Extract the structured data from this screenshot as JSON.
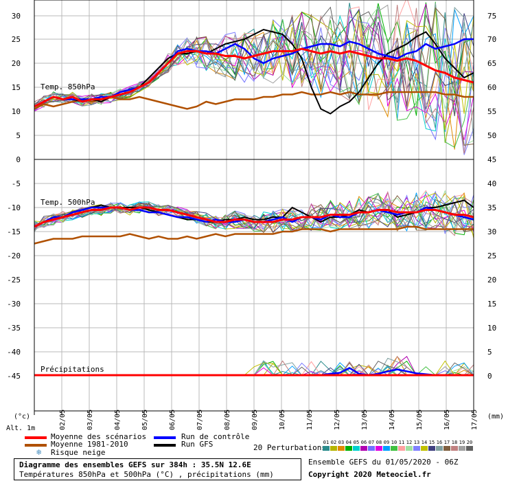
{
  "chart_data": {
    "type": "line",
    "x_dates": [
      "02/05",
      "03/05",
      "04/05",
      "05/05",
      "06/05",
      "07/05",
      "08/05",
      "09/05",
      "10/05",
      "11/05",
      "12/05",
      "13/05",
      "14/05",
      "15/05",
      "16/05",
      "17/05"
    ],
    "units_left": "(°c)",
    "units_right": "(mm)",
    "alt_label": "Alt. 1m",
    "left_ticks": [
      30,
      25,
      20,
      15,
      10,
      5,
      0,
      -5,
      -10,
      -15,
      -20,
      -25,
      -30,
      -35,
      -40,
      -45
    ],
    "right_ticks": [
      75,
      70,
      65,
      60,
      55,
      50,
      45,
      40,
      35,
      30,
      25,
      20,
      15,
      10,
      5,
      0
    ],
    "panels": [
      {
        "label": "Temp. 850hPa",
        "yrange_c": [
          0,
          30
        ],
        "mean_scenarios": [
          11,
          12,
          13,
          12.5,
          13,
          12,
          12.5,
          12.5,
          13,
          13.5,
          14,
          15,
          16,
          18,
          20,
          22,
          22.5,
          22.5,
          22,
          22,
          21.5,
          21.5,
          21,
          21.5,
          22,
          22.5,
          22.5,
          22.5,
          23,
          22.5,
          22,
          22.5,
          22,
          22.5,
          22,
          21.5,
          21,
          21,
          20.5,
          21,
          20.5,
          19.5,
          18.5,
          18,
          17,
          16.5,
          16
        ],
        "mean_1981_2010": [
          10.5,
          11.5,
          11,
          11.5,
          12,
          12.5,
          12,
          12.5,
          13,
          12.5,
          12.5,
          13,
          12.5,
          12,
          11.5,
          11,
          10.5,
          11,
          12,
          11.5,
          12,
          12.5,
          12.5,
          12.5,
          13,
          13,
          13.5,
          13.5,
          14,
          13.5,
          13.5,
          14,
          13.5,
          14,
          13.5,
          13.5,
          13.5,
          14,
          14,
          14,
          14,
          14,
          14,
          13.5,
          13.5,
          13,
          13
        ],
        "control_run": [
          11,
          12,
          13,
          12.5,
          12.5,
          12.5,
          12.5,
          13,
          13,
          14,
          14.5,
          15,
          16,
          18,
          20,
          22.5,
          23,
          22.5,
          22.5,
          22,
          23,
          24,
          23,
          21,
          20,
          21,
          21.5,
          22,
          23,
          23.5,
          24,
          24,
          23.5,
          24.5,
          24,
          23,
          22,
          21.5,
          21,
          22,
          22.5,
          24,
          23,
          23.5,
          24,
          25,
          25
        ],
        "gfs_run": [
          11,
          12,
          13,
          12.5,
          12.5,
          12,
          12.5,
          12,
          13,
          14,
          14.5,
          15,
          17,
          19,
          21,
          22,
          22,
          22.5,
          22,
          23,
          24,
          24.5,
          25,
          26,
          27,
          26.5,
          26,
          24,
          21,
          15,
          10.5,
          9.5,
          11,
          12,
          14,
          17,
          20,
          22,
          23,
          24,
          25.5,
          26.5,
          24,
          21,
          19,
          17,
          18
        ]
      },
      {
        "label": "Temp. 500hPa",
        "yrange_c": [
          -45,
          0
        ],
        "mean_scenarios": [
          -14,
          -13,
          -12.5,
          -12,
          -11.5,
          -11,
          -10.5,
          -10.5,
          -10,
          -10,
          -10.5,
          -10,
          -10,
          -10.5,
          -10.5,
          -11,
          -11.5,
          -12,
          -12.5,
          -13,
          -13,
          -12.5,
          -12.5,
          -13,
          -13,
          -13,
          -12.5,
          -12.5,
          -12,
          -12,
          -12,
          -11.5,
          -11.5,
          -11.5,
          -11,
          -11,
          -10.5,
          -10.5,
          -11,
          -11,
          -11,
          -10.5,
          -10.5,
          -11,
          -11.5,
          -11.5,
          -12
        ],
        "mean_1981_2010": [
          -17.5,
          -17,
          -16.5,
          -16.5,
          -16.5,
          -16,
          -16,
          -16,
          -16,
          -16,
          -15.5,
          -16,
          -16.5,
          -16,
          -16.5,
          -16.5,
          -16,
          -16.5,
          -16,
          -15.5,
          -16,
          -15.5,
          -15.5,
          -15.5,
          -15.5,
          -15.5,
          -15,
          -15,
          -14.5,
          -14.5,
          -14.5,
          -15,
          -14.5,
          -14.5,
          -14.5,
          -14.5,
          -14.5,
          -14.5,
          -14.5,
          -14,
          -14,
          -14.5,
          -14.5,
          -14.5,
          -14.5,
          -14.5,
          -14.5
        ],
        "control_run": [
          -14,
          -13,
          -12,
          -12,
          -11,
          -10.5,
          -10,
          -10,
          -10,
          -10,
          -10.5,
          -10.5,
          -11,
          -11,
          -11.5,
          -12,
          -12,
          -12.5,
          -13,
          -12.5,
          -13,
          -13,
          -12.5,
          -13,
          -13,
          -12.5,
          -12,
          -13,
          -12,
          -12,
          -12.5,
          -11.5,
          -12,
          -12,
          -11,
          -11,
          -10.5,
          -11,
          -11.5,
          -11,
          -11,
          -10,
          -10.5,
          -11,
          -11.5,
          -12,
          -12.5
        ],
        "gfs_run": [
          -14,
          -13,
          -12,
          -12,
          -11,
          -10.5,
          -10,
          -9.5,
          -10,
          -10,
          -10,
          -10,
          -10.5,
          -11,
          -11.5,
          -12,
          -12.5,
          -12.5,
          -13,
          -13,
          -12.5,
          -12.5,
          -12,
          -12.5,
          -12.5,
          -12,
          -12,
          -10,
          -11,
          -12,
          -13,
          -12,
          -12,
          -11.5,
          -10.5,
          -11,
          -10.5,
          -10.5,
          -12,
          -11.5,
          -11,
          -10,
          -10,
          -9.5,
          -9,
          -8.5,
          -10
        ]
      },
      {
        "label": "Précipitations",
        "yrange_mm": [
          0,
          45
        ],
        "mean_scenarios": [
          0,
          0,
          0,
          0,
          0,
          0,
          0,
          0,
          0,
          0,
          0,
          0,
          0,
          0,
          0,
          0,
          0,
          0,
          0,
          0,
          0,
          0,
          0,
          0,
          0,
          0,
          0,
          0,
          0,
          0,
          0,
          0,
          0,
          0,
          0,
          0,
          0,
          0,
          0,
          0,
          0,
          0,
          0,
          0,
          0,
          0,
          0
        ],
        "control_run": [
          0,
          0,
          0,
          0,
          0,
          0,
          0,
          0,
          0,
          0,
          0,
          0,
          0,
          0,
          0,
          0,
          0,
          0,
          0,
          0,
          0,
          0,
          0,
          0,
          0,
          0,
          0,
          0,
          0,
          0,
          0,
          0.3,
          0.5,
          1.5,
          0.3,
          0,
          0.3,
          0.8,
          1.2,
          0.8,
          0.4,
          0.2,
          0,
          0,
          0,
          0,
          0
        ],
        "gfs_run": [
          0,
          0,
          0,
          0,
          0,
          0,
          0,
          0,
          0,
          0,
          0,
          0,
          0,
          0,
          0,
          0,
          0,
          0,
          0,
          0,
          0,
          0,
          0,
          0,
          0,
          0,
          0,
          0,
          0,
          0,
          0,
          0,
          0,
          0,
          0,
          0,
          0,
          0,
          0,
          0,
          0,
          0,
          0,
          0,
          0,
          0,
          0
        ]
      }
    ],
    "perturbation_colors": [
      "#2b8c8c",
      "#b5b500",
      "#e08a00",
      "#00b000",
      "#00d0d0",
      "#b000b0",
      "#7070ff",
      "#e000e0",
      "#00a0ff",
      "#40c040",
      "#ffa0a0",
      "#a0e0a0",
      "#8080ff",
      "#c0c000",
      "#404080",
      "#80a0a0",
      "#806040",
      "#c08080",
      "#a0a0a0",
      "#606060"
    ]
  },
  "legend": {
    "mean_scenarios": "Moyenne des scénarios",
    "mean_1981_2010": "Moyenne 1981-2010",
    "snow_risk": "Risque neige",
    "control_run": "Run de contrôle",
    "gfs_run": "Run GFS",
    "perturbations": "20 Perturbations",
    "perturbation_numbers": [
      "01",
      "02",
      "03",
      "04",
      "05",
      "06",
      "07",
      "08",
      "09",
      "10",
      "11",
      "12",
      "13",
      "14",
      "15",
      "16",
      "17",
      "18",
      "19",
      "20"
    ]
  },
  "footer": {
    "title": "Diagramme des ensembles GEFS sur 384h : 35.5N 12.6E",
    "subtitle": "Températures 850hPa et 500hPa (°C) , précipitations (mm)",
    "ensemble": "Ensemble GEFS du 01/05/2020 - 06Z",
    "copyright": "Copyright 2020 Meteociel.fr"
  },
  "colors": {
    "mean_scenarios": "#ff0000",
    "mean_1981_2010": "#b05000",
    "control_run": "#0000ff",
    "gfs_run": "#000000",
    "grid": "#b8b8b8"
  }
}
